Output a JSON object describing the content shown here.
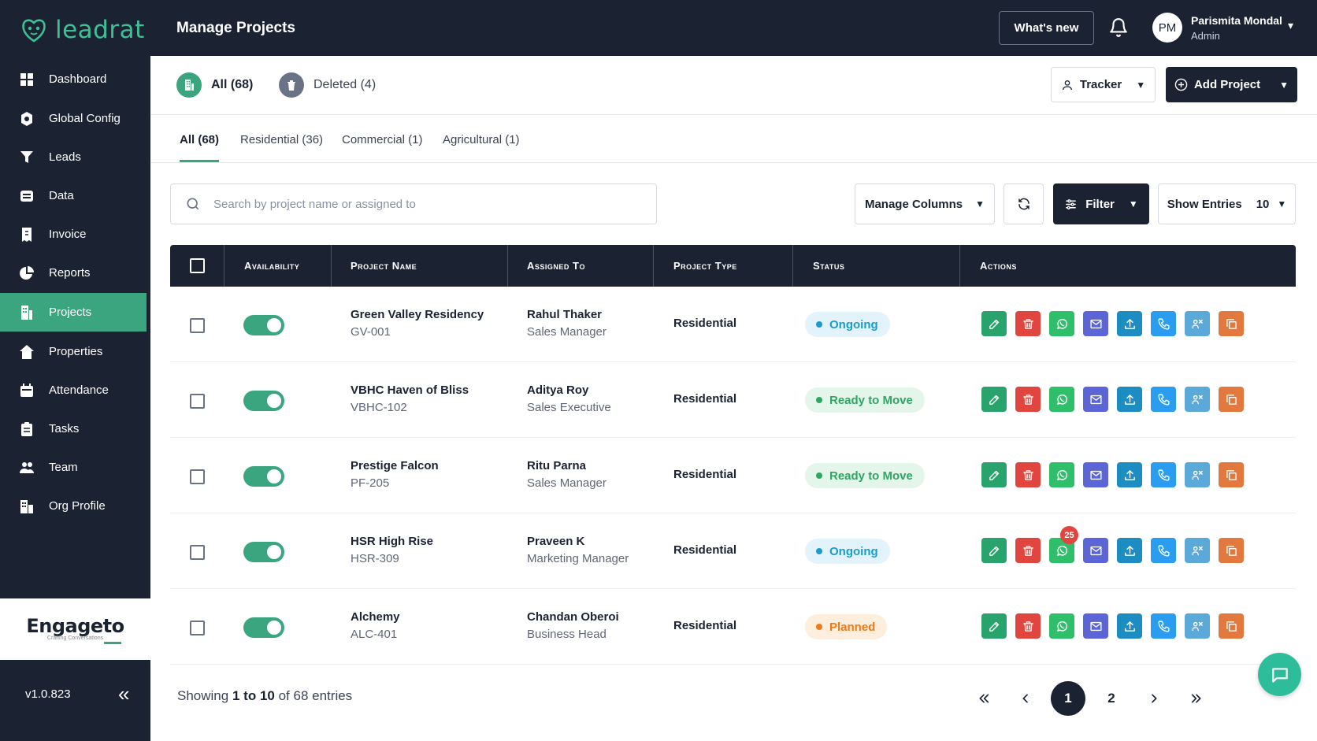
{
  "app": {
    "logo_text": "leadrat",
    "page_title": "Manage Projects"
  },
  "header": {
    "whats_new": "What's new",
    "user": {
      "initials": "PM",
      "name": "Parismita Mondal",
      "role": "Admin"
    }
  },
  "sidebar": {
    "items": [
      {
        "label": "Dashboard",
        "icon": "grid-icon"
      },
      {
        "label": "Global Config",
        "icon": "gear-icon"
      },
      {
        "label": "Leads",
        "icon": "funnel-icon"
      },
      {
        "label": "Data",
        "icon": "database-icon"
      },
      {
        "label": "Invoice",
        "icon": "invoice-icon"
      },
      {
        "label": "Reports",
        "icon": "pie-chart-icon"
      },
      {
        "label": "Projects",
        "icon": "building-icon",
        "active": true
      },
      {
        "label": "Properties",
        "icon": "home-icon"
      },
      {
        "label": "Attendance",
        "icon": "calendar-icon"
      },
      {
        "label": "Tasks",
        "icon": "clipboard-icon"
      },
      {
        "label": "Team",
        "icon": "users-icon"
      },
      {
        "label": "Org Profile",
        "icon": "org-icon"
      }
    ],
    "brand": {
      "name": "Engageto",
      "tagline": "Crafting Conversations"
    },
    "version": "v1.0.823"
  },
  "topbar": {
    "segments": [
      {
        "label": "All (68)"
      },
      {
        "label": "Deleted (4)"
      }
    ],
    "tracker_label": "Tracker",
    "add_project_label": "Add Project"
  },
  "tabs": [
    "All (68)",
    "Residential (36)",
    "Commercial (1)",
    "Agricultural (1)"
  ],
  "toolbar": {
    "search_placeholder": "Search by project name or assigned to",
    "manage_columns": "Manage Columns",
    "filter": "Filter",
    "show_entries_label": "Show Entries",
    "show_entries_value": "10"
  },
  "table": {
    "columns": [
      "Availability",
      "Project Name",
      "Assigned To",
      "Project Type",
      "Status",
      "Actions"
    ],
    "rows": [
      {
        "name": "Green Valley Residency",
        "code": "GV-001",
        "assignee": "Rahul Thaker",
        "role": "Sales Manager",
        "type": "Residential",
        "status": "Ongoing",
        "status_kind": "ongoing"
      },
      {
        "name": "VBHC Haven of Bliss",
        "code": "VBHC-102",
        "assignee": "Aditya Roy",
        "role": "Sales Executive",
        "type": "Residential",
        "status": "Ready to Move",
        "status_kind": "ready"
      },
      {
        "name": "Prestige Falcon",
        "code": "PF-205",
        "assignee": "Ritu Parna",
        "role": "Sales Manager",
        "type": "Residential",
        "status": "Ready to Move",
        "status_kind": "ready"
      },
      {
        "name": "HSR High Rise",
        "code": "HSR-309",
        "assignee": "Praveen K",
        "role": "Marketing Manager",
        "type": "Residential",
        "status": "Ongoing",
        "status_kind": "ongoing",
        "whatsapp_badge": "25"
      },
      {
        "name": "Alchemy",
        "code": "ALC-401",
        "assignee": "Chandan Oberoi",
        "role": "Business Head",
        "type": "Residential",
        "status": "Planned",
        "status_kind": "planned"
      }
    ],
    "action_icons": [
      {
        "icon": "edit-icon",
        "color": "#27a36b"
      },
      {
        "icon": "delete-icon",
        "color": "#e0463f"
      },
      {
        "icon": "whatsapp-icon",
        "color": "#2fbf6a"
      },
      {
        "icon": "email-icon",
        "color": "#5b65d6"
      },
      {
        "icon": "upload-icon",
        "color": "#1d8dc1"
      },
      {
        "icon": "phone-icon",
        "color": "#2a9df0"
      },
      {
        "icon": "assign-icon",
        "color": "#5aa9d8"
      },
      {
        "icon": "copy-icon",
        "color": "#e27a3f"
      }
    ]
  },
  "footer": {
    "showing_prefix": "Showing",
    "range_start": "1",
    "range_to": "to",
    "range_end": "10",
    "of": "of",
    "total": "68 entries",
    "pages": [
      "1",
      "2"
    ],
    "current_page": "1"
  },
  "colors": {
    "navy": "#1b2333",
    "green": "#3aa57f",
    "ongoing": "#1a9bd1",
    "ready": "#2ea664",
    "planned": "#f07a1a"
  }
}
